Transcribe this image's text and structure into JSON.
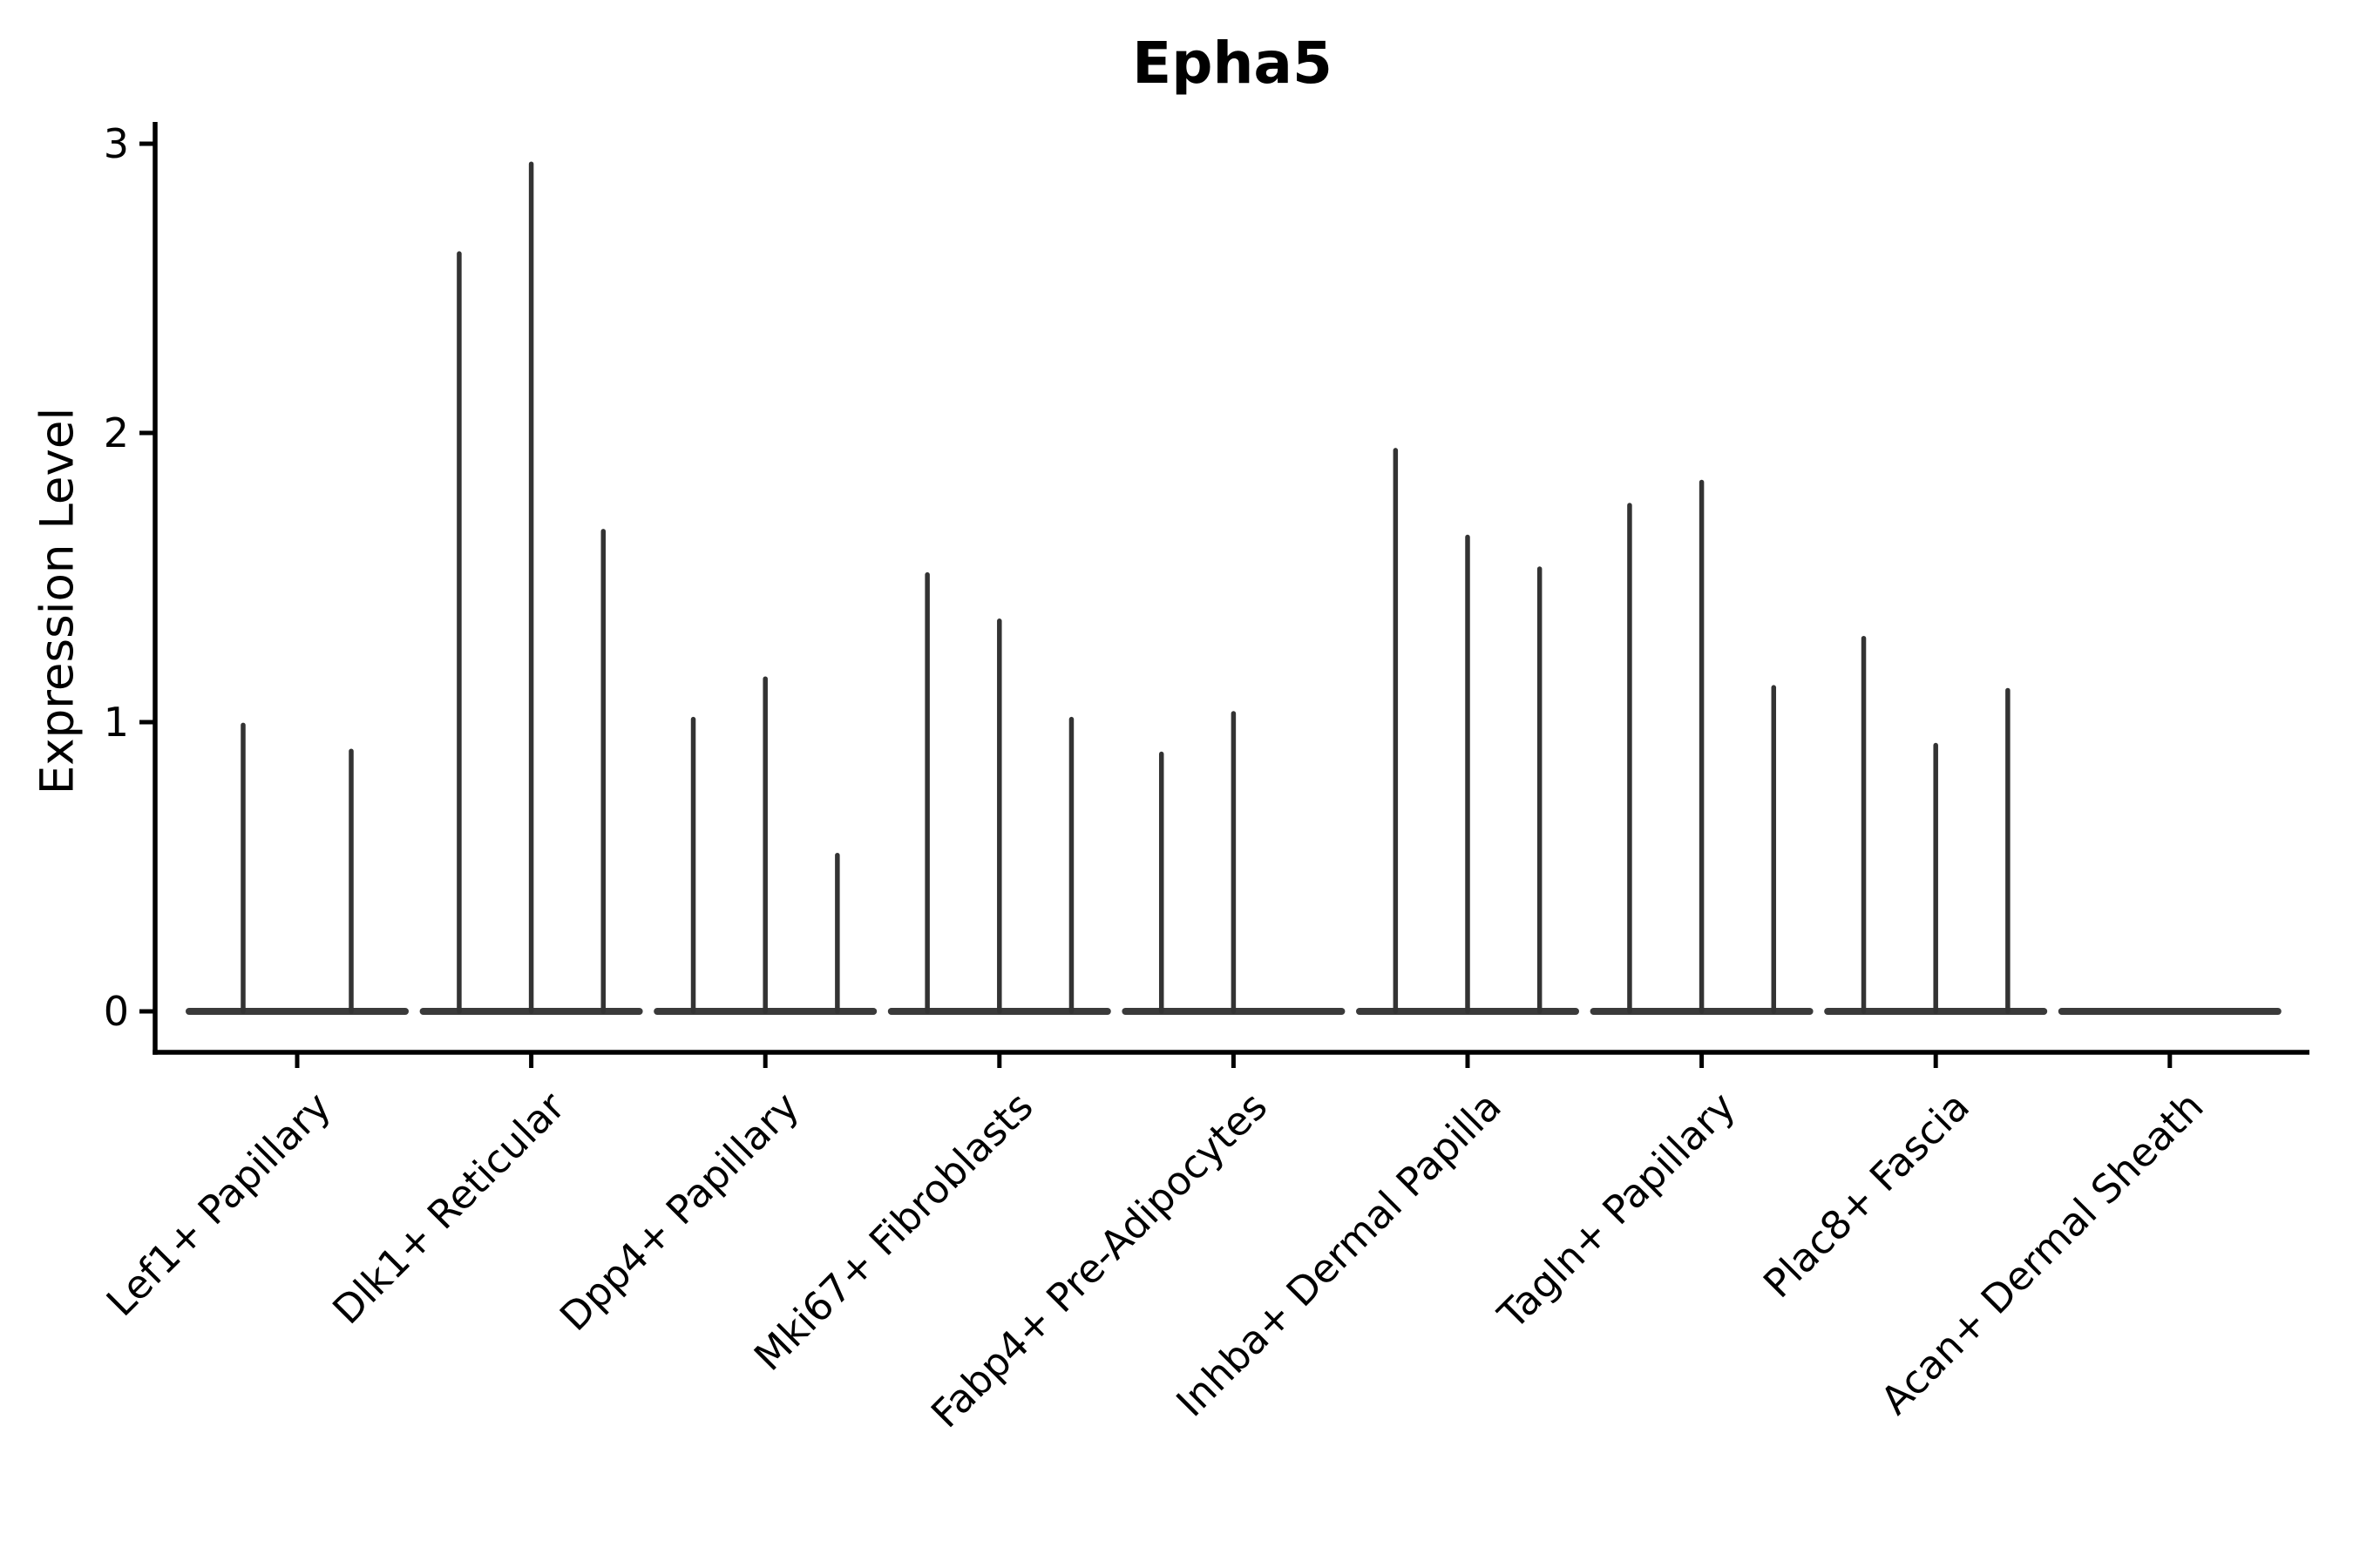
{
  "figure": {
    "title": "Epha5",
    "y_axis_label": "Expression Level"
  },
  "chart_data": {
    "type": "violin",
    "title": "Epha5",
    "xlabel": "",
    "ylabel": "Expression Level",
    "ylim": [
      -0.14,
      3.08
    ],
    "yticks": [
      0,
      1,
      2,
      3
    ],
    "grid": false,
    "legend": null,
    "description": "Stacked violin plot of Epha5 expression per fibroblast cluster; each cluster shows 2-3 very thin violins (bulk of cells at 0 forming a wide flat base, with a narrow spike up to the peak expression).",
    "categories": [
      "Lef1+ Papillary",
      "Dlk1+ Reticular",
      "Dpp4+ Papillary",
      "Mki67+ Fibroblasts",
      "Fabp4+ Pre-Adipocytes",
      "Inhba+ Dermal Papilla",
      "Tagln+ Papillary",
      "Plac8+ Fascia",
      "Acan+ Dermal Sheath"
    ],
    "groups": [
      {
        "category": "Lef1+ Papillary",
        "n_slots": 2,
        "violins": [
          {
            "slot": 0,
            "peak": 0.99
          },
          {
            "slot": 1,
            "peak": 0.9
          }
        ]
      },
      {
        "category": "Dlk1+ Reticular",
        "n_slots": 3,
        "violins": [
          {
            "slot": 0,
            "peak": 2.62
          },
          {
            "slot": 1,
            "peak": 2.93
          },
          {
            "slot": 2,
            "peak": 1.66
          }
        ]
      },
      {
        "category": "Dpp4+ Papillary",
        "n_slots": 3,
        "violins": [
          {
            "slot": 0,
            "peak": 1.01
          },
          {
            "slot": 1,
            "peak": 1.15
          },
          {
            "slot": 2,
            "peak": 0.54
          }
        ]
      },
      {
        "category": "Mki67+ Fibroblasts",
        "n_slots": 3,
        "violins": [
          {
            "slot": 0,
            "peak": 1.51
          },
          {
            "slot": 1,
            "peak": 1.35
          },
          {
            "slot": 2,
            "peak": 1.01
          }
        ]
      },
      {
        "category": "Fabp4+ Pre-Adipocytes",
        "n_slots": 3,
        "violins": [
          {
            "slot": 0,
            "peak": 0.89
          },
          {
            "slot": 1,
            "peak": 1.03
          }
        ]
      },
      {
        "category": "Inhba+ Dermal Papilla",
        "n_slots": 3,
        "violins": [
          {
            "slot": 0,
            "peak": 1.94
          },
          {
            "slot": 1,
            "peak": 1.64
          },
          {
            "slot": 2,
            "peak": 1.53
          }
        ]
      },
      {
        "category": "Tagln+ Papillary",
        "n_slots": 3,
        "violins": [
          {
            "slot": 0,
            "peak": 1.75
          },
          {
            "slot": 1,
            "peak": 1.83
          },
          {
            "slot": 2,
            "peak": 1.12
          }
        ]
      },
      {
        "category": "Plac8+ Fascia",
        "n_slots": 3,
        "violins": [
          {
            "slot": 0,
            "peak": 1.29
          },
          {
            "slot": 1,
            "peak": 0.92
          },
          {
            "slot": 2,
            "peak": 1.11
          }
        ]
      },
      {
        "category": "Acan+ Dermal Sheath",
        "n_slots": 3,
        "violins": []
      }
    ],
    "style": {
      "violin_color": "#333333",
      "baseline_color": "#3a3a3a",
      "axis_color": "#000000",
      "background": "#ffffff"
    }
  }
}
